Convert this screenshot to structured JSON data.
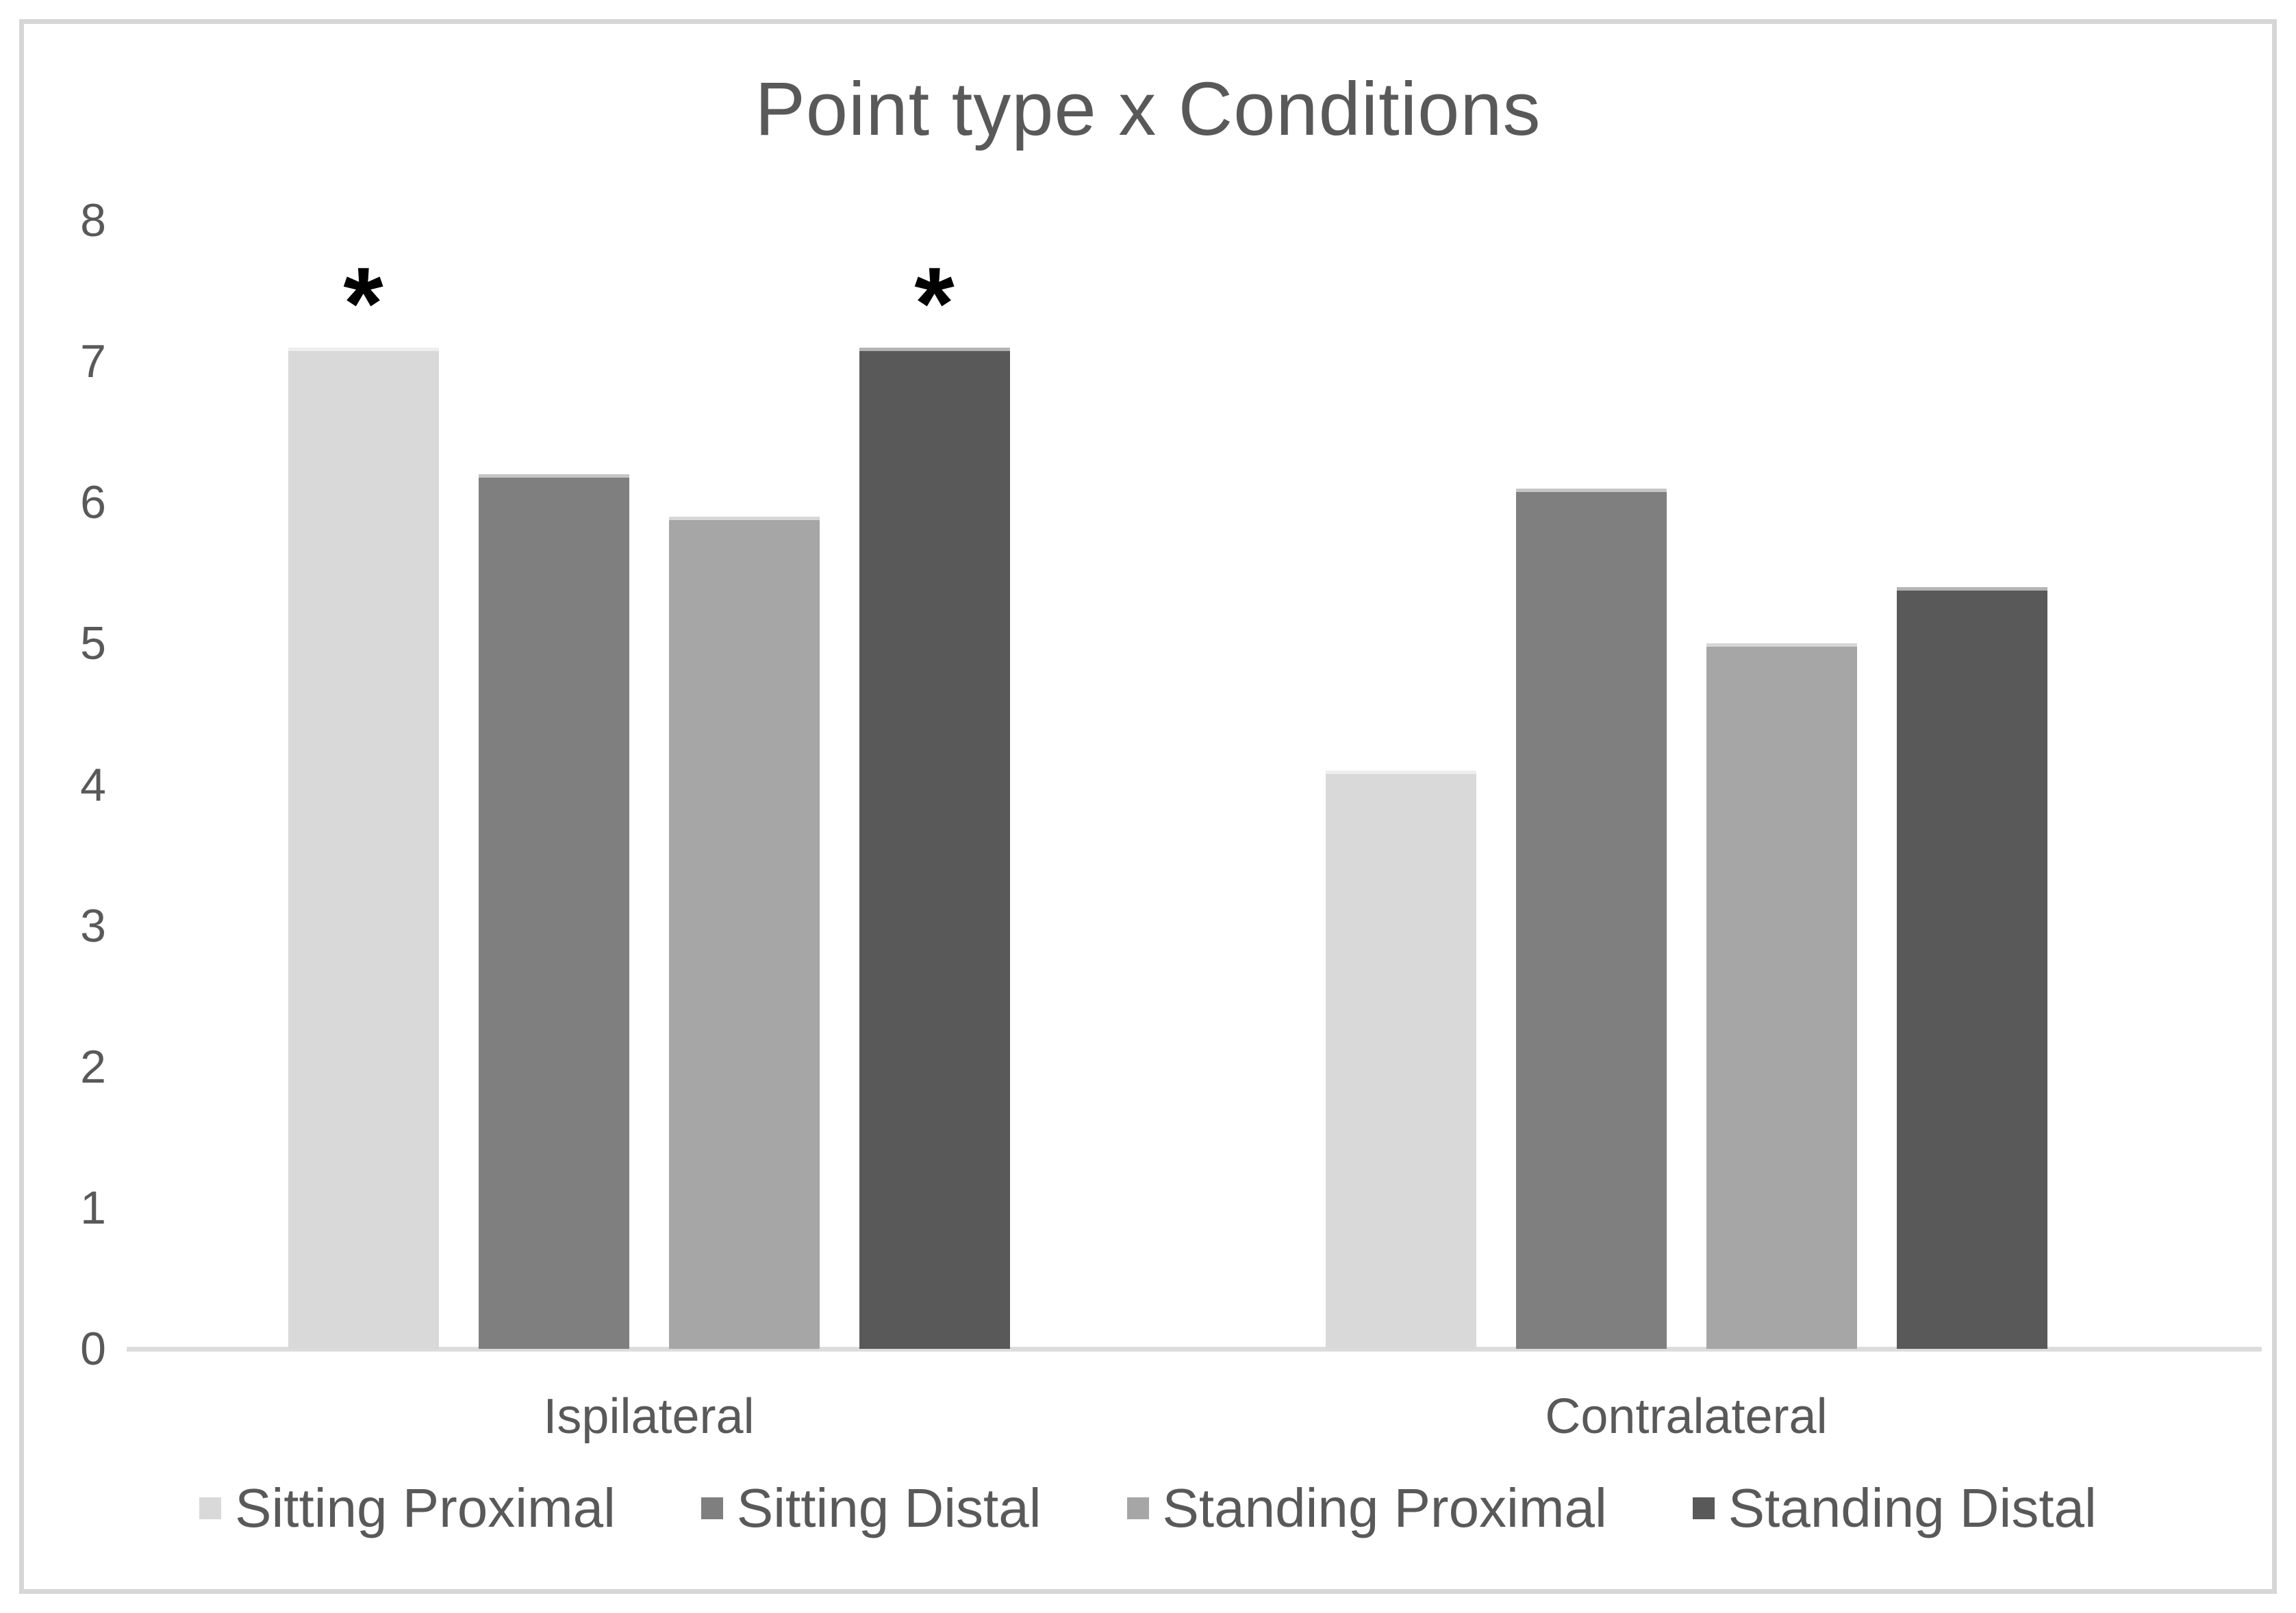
{
  "chart_data": {
    "type": "bar",
    "title": "Point type x Conditions",
    "categories": [
      "Ispilateral",
      "Contralateral"
    ],
    "series": [
      {
        "name": "Sitting Proximal",
        "color": "#d9d9d9",
        "values": [
          7.1,
          4.1
        ]
      },
      {
        "name": "Sitting Distal",
        "color": "#7f7f7f",
        "values": [
          6.2,
          6.1
        ]
      },
      {
        "name": "Standing Proximal",
        "color": "#a6a6a6",
        "values": [
          5.9,
          5.0
        ]
      },
      {
        "name": "Standing Distal",
        "color": "#595959",
        "values": [
          7.1,
          5.4
        ]
      }
    ],
    "annotations": [
      {
        "category": "Ispilateral",
        "series": "Sitting Proximal",
        "symbol": "*"
      },
      {
        "category": "Ispilateral",
        "series": "Standing Distal",
        "symbol": "*"
      }
    ],
    "xlabel": "",
    "ylabel": "",
    "ylim": [
      0,
      8
    ],
    "yticks": [
      0,
      1,
      2,
      3,
      4,
      5,
      6,
      7,
      8
    ],
    "grid": false,
    "legend_position": "bottom",
    "axis_color": "#dcdcdc",
    "text_color": "#595959",
    "annotation_color": "#000000"
  }
}
